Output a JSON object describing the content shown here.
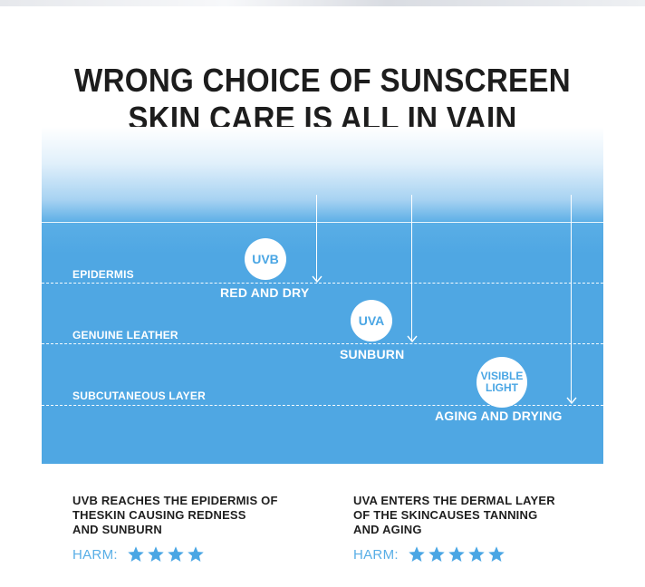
{
  "title": {
    "line1": "WRONG CHOICE OF SUNSCREEN",
    "line2": "SKIN CARE IS ALL IN VAIN"
  },
  "layers": [
    {
      "label": "EPIDERMIS"
    },
    {
      "label": "GENUINE LEATHER"
    },
    {
      "label": "SUBCUTANEOUS LAYER"
    }
  ],
  "rays": [
    {
      "name": "UVB",
      "effect": "RED AND DRY"
    },
    {
      "name": "UVA",
      "effect": "SUNBURN"
    },
    {
      "name_line1": "VISIBLE",
      "name_line2": "LIGHT",
      "effect": "AGING AND DRYING"
    }
  ],
  "descriptions": [
    {
      "line1": "UVB REACHES THE EPIDERMIS OF",
      "line2": "THESKIN CAUSING REDNESS",
      "line3": "AND SUNBURN",
      "harm_label": "HARM:",
      "harm_stars": 4
    },
    {
      "line1": "UVA ENTERS THE DERMAL LAYER",
      "line2": "OF THE SKINCAUSES TANNING",
      "line3": "AND AGING",
      "harm_label": "HARM:",
      "harm_stars": 5
    }
  ],
  "colors": {
    "accent": "#4fa7e3",
    "star": "#4aa6e4",
    "title": "#1d1d1d"
  },
  "icons": {
    "star": "star-icon",
    "arrow": "arrow-down-icon"
  }
}
